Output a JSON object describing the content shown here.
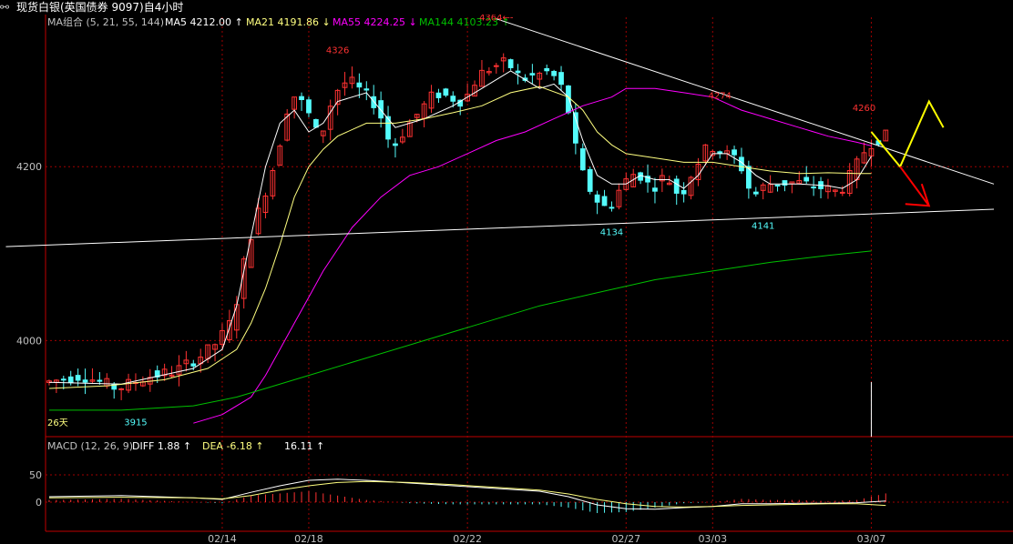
{
  "window_title": "现货白银(英国债券 9097)自4小时",
  "icons": {
    "title": "link-icon"
  },
  "ma_legend": {
    "label": "MA组合 (5, 21, 55, 144)",
    "ma5": "MA5 4212.00 ↑",
    "ma21": "MA21 4191.86 ↓",
    "ma55": "MA55 4224.25 ↓",
    "ma144": "MA144 4103.23 ↑"
  },
  "macd_legend": {
    "label": "MACD (12, 26, 9)",
    "diff": "DIFF  1.88 ↑",
    "dea": "DEA  -6.18 ↑",
    "macd": "16.11 ↑"
  },
  "colors": {
    "up": "#ff3232",
    "down": "#54fcfc",
    "ma5": "#ffffff",
    "ma21": "#ffff80",
    "ma55": "#ff00ff",
    "ma144": "#00c000",
    "grid": "#a00000",
    "axis": "#c00000",
    "trend": "#ffffff",
    "arrow_up": "#ffff00",
    "arrow_down": "#ff0000"
  },
  "chart_data": {
    "type": "candlestick",
    "price_axis": {
      "ticks": [
        4000,
        4200
      ],
      "ylim": [
        3900,
        4400
      ]
    },
    "macd_axis": {
      "ticks": [
        0,
        50
      ],
      "ylim": [
        -30,
        70
      ]
    },
    "x_ticks": [
      "02/14",
      "02/18",
      "02/22",
      "02/27",
      "03/03",
      "03/07"
    ],
    "x_tick_index": [
      24,
      36,
      58,
      80,
      92,
      114
    ],
    "num_bars": 120,
    "annotations": [
      {
        "text": "4326",
        "index": 40,
        "value": 4326,
        "kind": "high"
      },
      {
        "text": "4364←-",
        "index": 62,
        "value": 4364,
        "kind": "high"
      },
      {
        "text": "4274",
        "index": 93,
        "value": 4274,
        "kind": "high"
      },
      {
        "text": "4260",
        "index": 113,
        "value": 4260,
        "kind": "high"
      },
      {
        "text": "4134",
        "index": 78,
        "value": 4134,
        "kind": "low"
      },
      {
        "text": "4141",
        "index": 99,
        "value": 4141,
        "kind": "low"
      },
      {
        "text": "3915",
        "index": 12,
        "value": 3915,
        "kind": "low"
      }
    ],
    "start_label": "26天",
    "path": [
      [
        0,
        3952
      ],
      [
        5,
        3960
      ],
      [
        10,
        3945
      ],
      [
        14,
        3958
      ],
      [
        18,
        3965
      ],
      [
        22,
        3985
      ],
      [
        24,
        4000
      ],
      [
        26,
        4025
      ],
      [
        28,
        4110
      ],
      [
        30,
        4160
      ],
      [
        32,
        4210
      ],
      [
        34,
        4285
      ],
      [
        36,
        4270
      ],
      [
        38,
        4230
      ],
      [
        40,
        4285
      ],
      [
        42,
        4300
      ],
      [
        46,
        4270
      ],
      [
        48,
        4220
      ],
      [
        50,
        4245
      ],
      [
        54,
        4285
      ],
      [
        58,
        4275
      ],
      [
        60,
        4305
      ],
      [
        62,
        4315
      ],
      [
        64,
        4320
      ],
      [
        66,
        4300
      ],
      [
        68,
        4305
      ],
      [
        70,
        4310
      ],
      [
        72,
        4285
      ],
      [
        74,
        4200
      ],
      [
        76,
        4165
      ],
      [
        78,
        4150
      ],
      [
        80,
        4180
      ],
      [
        82,
        4195
      ],
      [
        84,
        4175
      ],
      [
        86,
        4190
      ],
      [
        88,
        4165
      ],
      [
        90,
        4200
      ],
      [
        92,
        4225
      ],
      [
        94,
        4215
      ],
      [
        96,
        4210
      ],
      [
        98,
        4165
      ],
      [
        100,
        4180
      ],
      [
        104,
        4182
      ],
      [
        108,
        4175
      ],
      [
        110,
        4170
      ],
      [
        112,
        4195
      ],
      [
        114,
        4225
      ],
      [
        116,
        4235
      ]
    ],
    "ma": {
      "ma5": [
        [
          0,
          3952
        ],
        [
          10,
          3950
        ],
        [
          20,
          3968
        ],
        [
          24,
          3990
        ],
        [
          26,
          4040
        ],
        [
          28,
          4120
        ],
        [
          30,
          4200
        ],
        [
          32,
          4250
        ],
        [
          34,
          4265
        ],
        [
          36,
          4240
        ],
        [
          38,
          4250
        ],
        [
          40,
          4275
        ],
        [
          44,
          4285
        ],
        [
          48,
          4245
        ],
        [
          52,
          4255
        ],
        [
          56,
          4270
        ],
        [
          60,
          4290
        ],
        [
          62,
          4300
        ],
        [
          64,
          4310
        ],
        [
          66,
          4300
        ],
        [
          68,
          4290
        ],
        [
          70,
          4295
        ],
        [
          72,
          4280
        ],
        [
          74,
          4230
        ],
        [
          76,
          4190
        ],
        [
          78,
          4180
        ],
        [
          80,
          4180
        ],
        [
          82,
          4190
        ],
        [
          84,
          4185
        ],
        [
          86,
          4185
        ],
        [
          88,
          4175
        ],
        [
          90,
          4190
        ],
        [
          92,
          4215
        ],
        [
          94,
          4215
        ],
        [
          96,
          4205
        ],
        [
          98,
          4190
        ],
        [
          100,
          4180
        ],
        [
          104,
          4180
        ],
        [
          108,
          4178
        ],
        [
          110,
          4175
        ],
        [
          112,
          4185
        ],
        [
          114,
          4212
        ]
      ],
      "ma21": [
        [
          0,
          3945
        ],
        [
          8,
          3948
        ],
        [
          16,
          3955
        ],
        [
          22,
          3968
        ],
        [
          26,
          3990
        ],
        [
          28,
          4020
        ],
        [
          30,
          4060
        ],
        [
          32,
          4110
        ],
        [
          34,
          4165
        ],
        [
          36,
          4200
        ],
        [
          38,
          4220
        ],
        [
          40,
          4235
        ],
        [
          44,
          4250
        ],
        [
          48,
          4250
        ],
        [
          52,
          4255
        ],
        [
          56,
          4262
        ],
        [
          60,
          4270
        ],
        [
          64,
          4285
        ],
        [
          68,
          4292
        ],
        [
          72,
          4280
        ],
        [
          74,
          4265
        ],
        [
          76,
          4240
        ],
        [
          78,
          4225
        ],
        [
          80,
          4215
        ],
        [
          84,
          4210
        ],
        [
          88,
          4205
        ],
        [
          92,
          4205
        ],
        [
          96,
          4200
        ],
        [
          100,
          4195
        ],
        [
          104,
          4192
        ],
        [
          108,
          4193
        ],
        [
          112,
          4192
        ],
        [
          114,
          4192
        ]
      ],
      "ma55": [
        [
          20,
          3905
        ],
        [
          24,
          3915
        ],
        [
          28,
          3935
        ],
        [
          30,
          3960
        ],
        [
          32,
          3990
        ],
        [
          34,
          4020
        ],
        [
          36,
          4050
        ],
        [
          38,
          4080
        ],
        [
          42,
          4130
        ],
        [
          46,
          4165
        ],
        [
          50,
          4190
        ],
        [
          54,
          4200
        ],
        [
          58,
          4215
        ],
        [
          62,
          4230
        ],
        [
          66,
          4240
        ],
        [
          70,
          4255
        ],
        [
          74,
          4270
        ],
        [
          78,
          4280
        ],
        [
          80,
          4290
        ],
        [
          84,
          4290
        ],
        [
          88,
          4285
        ],
        [
          92,
          4280
        ],
        [
          96,
          4265
        ],
        [
          100,
          4255
        ],
        [
          104,
          4245
        ],
        [
          108,
          4235
        ],
        [
          112,
          4228
        ],
        [
          114,
          4224
        ]
      ],
      "ma144": [
        [
          0,
          3920
        ],
        [
          10,
          3920
        ],
        [
          20,
          3925
        ],
        [
          26,
          3935
        ],
        [
          30,
          3945
        ],
        [
          36,
          3960
        ],
        [
          44,
          3980
        ],
        [
          52,
          4000
        ],
        [
          60,
          4020
        ],
        [
          68,
          4040
        ],
        [
          76,
          4055
        ],
        [
          84,
          4070
        ],
        [
          92,
          4080
        ],
        [
          100,
          4090
        ],
        [
          108,
          4098
        ],
        [
          114,
          4103
        ]
      ]
    },
    "trendlines": [
      {
        "from": [
          -6,
          4108
        ],
        "to": [
          131,
          4151
        ]
      },
      {
        "from": [
          62,
          4370
        ],
        "to": [
          131,
          4180
        ]
      }
    ],
    "projection": {
      "up": {
        "points": [
          [
            114,
            4240
          ],
          [
            118,
            4200
          ],
          [
            122,
            4275
          ],
          [
            124,
            4245
          ]
        ]
      },
      "down": {
        "points": [
          [
            118,
            4200
          ],
          [
            122,
            4155
          ]
        ]
      }
    },
    "macd": {
      "diff": [
        [
          0,
          10
        ],
        [
          10,
          12
        ],
        [
          20,
          8
        ],
        [
          24,
          5
        ],
        [
          28,
          18
        ],
        [
          32,
          30
        ],
        [
          36,
          40
        ],
        [
          40,
          42
        ],
        [
          44,
          40
        ],
        [
          50,
          35
        ],
        [
          56,
          30
        ],
        [
          62,
          25
        ],
        [
          68,
          20
        ],
        [
          72,
          10
        ],
        [
          76,
          -5
        ],
        [
          80,
          -12
        ],
        [
          84,
          -13
        ],
        [
          88,
          -10
        ],
        [
          92,
          -8
        ],
        [
          96,
          -3
        ],
        [
          100,
          -3
        ],
        [
          104,
          -2
        ],
        [
          108,
          -2
        ],
        [
          112,
          -1
        ],
        [
          116,
          2
        ]
      ],
      "dea": [
        [
          0,
          8
        ],
        [
          10,
          9
        ],
        [
          20,
          8
        ],
        [
          24,
          6
        ],
        [
          28,
          12
        ],
        [
          32,
          22
        ],
        [
          36,
          30
        ],
        [
          40,
          36
        ],
        [
          44,
          38
        ],
        [
          50,
          36
        ],
        [
          56,
          32
        ],
        [
          62,
          27
        ],
        [
          68,
          22
        ],
        [
          72,
          15
        ],
        [
          76,
          5
        ],
        [
          80,
          -3
        ],
        [
          84,
          -8
        ],
        [
          88,
          -9
        ],
        [
          92,
          -8
        ],
        [
          96,
          -6
        ],
        [
          100,
          -5
        ],
        [
          104,
          -4
        ],
        [
          108,
          -3
        ],
        [
          112,
          -3
        ],
        [
          116,
          -6
        ]
      ]
    }
  }
}
